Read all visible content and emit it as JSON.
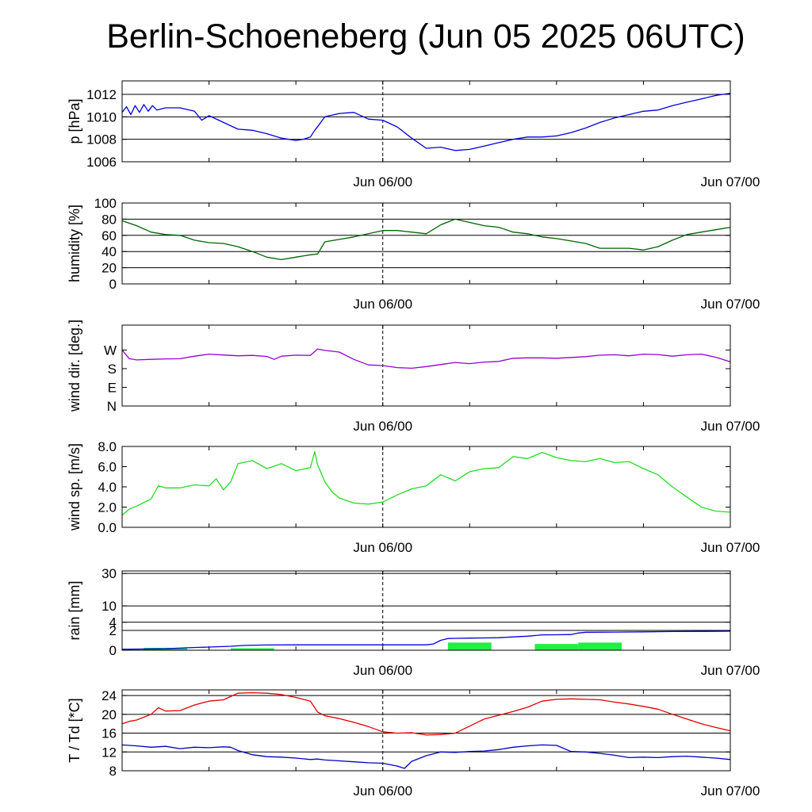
{
  "title": "Berlin-Schoeneberg (Jun 05 2025 06UTC)",
  "colors": {
    "pressure": "#0000e0",
    "humidity": "#006400",
    "wind_dir": "#9400d3",
    "wind_speed": "#22dd22",
    "rain_total": "#0000e0",
    "rain_bars": "#22ee44",
    "temperature": "#e00000",
    "dewpoint": "#0000c0"
  },
  "chart_data": [
    {
      "id": "pressure",
      "type": "line",
      "ylabel": "p [hPa]",
      "xlim": [
        0,
        42
      ],
      "ylim": [
        1006,
        1013.2
      ],
      "yticks": [
        "1006",
        "1008",
        "1010",
        "1012"
      ],
      "ytick_values": [
        1006,
        1008,
        1010,
        1012
      ],
      "grid_y": [
        1008,
        1010,
        1012
      ],
      "xticks": [
        "Jun 06/00",
        "Jun 07/00"
      ],
      "xtick_hours": [
        18,
        42
      ],
      "marker_hour": 18,
      "series": [
        {
          "color_key": "pressure",
          "x": [
            0,
            0.3,
            0.6,
            0.9,
            1.2,
            1.5,
            1.8,
            2.1,
            2.4,
            3,
            4,
            5,
            5.5,
            6,
            7,
            8,
            9,
            10,
            11,
            12,
            12.5,
            13,
            13.3,
            13.6,
            14,
            15,
            16,
            17,
            18,
            19,
            20,
            21,
            22,
            23,
            24,
            25,
            26,
            27,
            28,
            29,
            30,
            31,
            32,
            33,
            34,
            35,
            36,
            37,
            38,
            39,
            40,
            41,
            42
          ],
          "y": [
            1010.4,
            1010.9,
            1010.2,
            1011,
            1010.4,
            1011.1,
            1010.5,
            1011,
            1010.6,
            1010.8,
            1010.8,
            1010.5,
            1009.7,
            1010.1,
            1009.5,
            1008.9,
            1008.8,
            1008.5,
            1008.1,
            1007.9,
            1008,
            1008.2,
            1008.8,
            1009.3,
            1010,
            1010.3,
            1010.4,
            1009.8,
            1009.7,
            1009.1,
            1008.1,
            1007.2,
            1007.3,
            1007,
            1007.1,
            1007.4,
            1007.7,
            1008,
            1008.2,
            1008.2,
            1008.3,
            1008.6,
            1009,
            1009.5,
            1009.9,
            1010.2,
            1010.5,
            1010.6,
            1011,
            1011.3,
            1011.6,
            1011.9,
            1012.1
          ]
        }
      ]
    },
    {
      "id": "humidity",
      "type": "line",
      "ylabel": "humidity [%]",
      "xlim": [
        0,
        42
      ],
      "ylim": [
        0,
        100
      ],
      "yticks": [
        "0",
        "20",
        "40",
        "60",
        "80",
        "100"
      ],
      "ytick_values": [
        0,
        20,
        40,
        60,
        80,
        100
      ],
      "grid_y": [
        20,
        40,
        60,
        80
      ],
      "xticks": [
        "Jun 06/00",
        "Jun 07/00"
      ],
      "xtick_hours": [
        18,
        42
      ],
      "marker_hour": 18,
      "series": [
        {
          "color_key": "humidity",
          "x": [
            0,
            1,
            2,
            3,
            4,
            5,
            6,
            7,
            8,
            9,
            10,
            11,
            12,
            13,
            13.5,
            14,
            15,
            16,
            17,
            18,
            19,
            20,
            21,
            22,
            23,
            24,
            25,
            26,
            27,
            28,
            29,
            30,
            31,
            32,
            33,
            34,
            35,
            36,
            37,
            38,
            39,
            40,
            41,
            42
          ],
          "y": [
            78,
            72,
            64,
            61,
            60,
            54,
            51,
            50,
            46,
            40,
            33,
            30,
            33,
            36,
            37,
            52,
            55,
            58,
            62,
            66,
            66,
            64,
            62,
            73,
            80,
            76,
            72,
            70,
            64,
            62,
            58,
            56,
            53,
            50,
            44,
            44,
            44,
            42,
            46,
            54,
            61,
            64,
            67,
            70
          ]
        }
      ]
    },
    {
      "id": "wind_dir",
      "type": "line",
      "ylabel": "wind dir. [deg.]",
      "xlim": [
        0,
        42
      ],
      "ylim": [
        0,
        390
      ],
      "yticks": [
        "N",
        "E",
        "S",
        "W"
      ],
      "ytick_values": [
        0,
        90,
        180,
        270
      ],
      "grid_y": [],
      "xticks": [
        "Jun 06/00",
        "Jun 07/00"
      ],
      "xtick_hours": [
        18,
        42
      ],
      "marker_hour": 18,
      "series": [
        {
          "color_key": "wind_dir",
          "x": [
            0,
            0.5,
            1,
            2,
            3,
            4,
            5,
            6,
            7,
            8,
            9,
            10,
            10.5,
            11,
            12,
            13,
            13.5,
            14,
            15,
            16,
            17,
            18,
            19,
            20,
            21,
            22,
            23,
            24,
            25,
            26,
            27,
            28,
            29,
            30,
            31,
            32,
            33,
            34,
            35,
            36,
            37,
            38,
            39,
            40,
            41,
            42
          ],
          "y": [
            270,
            228,
            222,
            225,
            227,
            228,
            240,
            250,
            246,
            242,
            244,
            239,
            225,
            240,
            245,
            244,
            275,
            268,
            260,
            225,
            198,
            195,
            185,
            182,
            190,
            200,
            210,
            204,
            212,
            215,
            230,
            232,
            232,
            230,
            234,
            238,
            245,
            247,
            242,
            250,
            248,
            240,
            247,
            250,
            235,
            213
          ]
        }
      ]
    },
    {
      "id": "wind_speed",
      "type": "line",
      "ylabel": "wind sp. [m/s]",
      "xlim": [
        0,
        42
      ],
      "ylim": [
        0,
        8
      ],
      "yticks": [
        "0.0",
        "2.0",
        "4.0",
        "6.0",
        "8.0"
      ],
      "ytick_values": [
        0,
        2,
        4,
        6,
        8
      ],
      "grid_y": [],
      "xticks": [
        "Jun 06/00",
        "Jun 07/00"
      ],
      "xtick_hours": [
        18,
        42
      ],
      "marker_hour": 18,
      "series": [
        {
          "color_key": "wind_speed",
          "x": [
            0,
            0.5,
            1,
            2,
            2.5,
            3,
            4,
            5,
            6,
            6.5,
            7,
            7.5,
            8,
            9,
            10,
            11,
            12,
            13,
            13.3,
            13.5,
            14,
            14.5,
            15,
            16,
            17,
            18,
            19,
            20,
            21,
            22,
            23,
            24,
            25,
            26,
            27,
            28,
            29,
            30,
            31,
            32,
            33,
            34,
            35,
            36,
            37,
            38,
            39,
            40,
            41,
            42
          ],
          "y": [
            1.2,
            1.8,
            2.1,
            2.8,
            4.1,
            3.9,
            3.9,
            4.2,
            4.1,
            4.8,
            3.7,
            4.5,
            6.3,
            6.6,
            5.8,
            6.3,
            5.6,
            5.9,
            7.5,
            6.2,
            4.5,
            3.5,
            2.9,
            2.4,
            2.3,
            2.5,
            3.2,
            3.8,
            4.1,
            5.2,
            4.6,
            5.5,
            5.8,
            5.9,
            7,
            6.8,
            7.4,
            6.9,
            6.6,
            6.5,
            6.8,
            6.4,
            6.5,
            5.8,
            5.2,
            4,
            3,
            2,
            1.6,
            1.5
          ]
        }
      ]
    },
    {
      "id": "rain",
      "type": "bar+line",
      "ylabel": "rain [mm]",
      "xlim": [
        0,
        42
      ],
      "scale": "sqrt",
      "ylim": [
        0,
        32
      ],
      "yticks": [
        "0",
        "2",
        "4",
        "10",
        "30"
      ],
      "ytick_values": [
        0,
        2,
        4,
        10,
        30
      ],
      "grid_y": [
        2,
        4,
        10,
        30
      ],
      "xticks": [
        "Jun 06/00",
        "Jun 07/00"
      ],
      "xtick_hours": [
        18,
        42
      ],
      "marker_hour": 18,
      "bars": [
        {
          "start": 1.5,
          "end": 4.5,
          "value": 0.03
        },
        {
          "start": 7.5,
          "end": 10.5,
          "value": 0.02
        },
        {
          "start": 22.5,
          "end": 25.5,
          "value": 0.3
        },
        {
          "start": 28.5,
          "end": 31.5,
          "value": 0.2
        },
        {
          "start": 31.5,
          "end": 34.5,
          "value": 0.3
        }
      ],
      "series": [
        {
          "color_key": "rain_total",
          "x": [
            0,
            3,
            4.5,
            6,
            7.5,
            8.5,
            10,
            12,
            14,
            16,
            18,
            20,
            21,
            21.5,
            22,
            22.5,
            23,
            24,
            25,
            26,
            27,
            28,
            28.5,
            29,
            30,
            31,
            31.5,
            32,
            34,
            36,
            38,
            40,
            42
          ],
          "y": [
            0.005,
            0.01,
            0.03,
            0.05,
            0.08,
            0.12,
            0.14,
            0.15,
            0.15,
            0.15,
            0.15,
            0.15,
            0.15,
            0.2,
            0.5,
            0.7,
            0.72,
            0.75,
            0.77,
            0.8,
            0.9,
            1.0,
            1.1,
            1.2,
            1.22,
            1.25,
            1.5,
            1.65,
            1.68,
            1.72,
            1.78,
            1.82,
            1.85
          ]
        }
      ]
    },
    {
      "id": "temperature",
      "type": "line",
      "ylabel": "T / Td [*C]",
      "xlim": [
        0,
        42
      ],
      "ylim": [
        8,
        25.2
      ],
      "yticks": [
        "8",
        "12",
        "16",
        "20",
        "24"
      ],
      "ytick_values": [
        8,
        12,
        16,
        20,
        24
      ],
      "grid_y": [
        12,
        16,
        20,
        24
      ],
      "xticks": [
        "Jun 06/00",
        "Jun 07/00"
      ],
      "xtick_hours": [
        18,
        42
      ],
      "marker_hour": 18,
      "series": [
        {
          "color_key": "temperature",
          "x": [
            0,
            0.5,
            1,
            2,
            2.5,
            3,
            4,
            5,
            6,
            7,
            8,
            9,
            10,
            11,
            12,
            13,
            13.5,
            14,
            15,
            16,
            17,
            18,
            19,
            20,
            21,
            22,
            23,
            24,
            25,
            26,
            27,
            28,
            29,
            30,
            31,
            32,
            33,
            34,
            35,
            36,
            37,
            38,
            39,
            40,
            41,
            42
          ],
          "y": [
            18,
            18.5,
            18.8,
            20,
            21.4,
            20.7,
            20.8,
            22,
            22.8,
            23.1,
            24.5,
            24.6,
            24.5,
            24.2,
            23.6,
            22.8,
            20.5,
            19.7,
            19.1,
            18.3,
            17.4,
            16.3,
            16,
            16.1,
            15.6,
            15.7,
            16,
            17.5,
            19,
            19.8,
            20.6,
            21.5,
            22.8,
            23.2,
            23.3,
            23.2,
            23.1,
            22.6,
            22.2,
            21.7,
            21.1,
            20,
            19,
            18,
            17.2,
            16.5
          ]
        },
        {
          "color_key": "dewpoint",
          "x": [
            0,
            1,
            2,
            3,
            4,
            5,
            6,
            7,
            7.5,
            8,
            9,
            10,
            11,
            12,
            13,
            13.5,
            14,
            15,
            16,
            17,
            18,
            19,
            19.5,
            20,
            21,
            22,
            23,
            24,
            25,
            26,
            27,
            28,
            28.5,
            29,
            30,
            31,
            32,
            33,
            34,
            35,
            36,
            37,
            38,
            39,
            40,
            41,
            42
          ],
          "y": [
            13.5,
            13.3,
            13,
            13.2,
            12.7,
            13,
            12.9,
            13.1,
            13,
            12.3,
            11.4,
            11,
            10.9,
            10.7,
            10.4,
            10.5,
            10.3,
            10.1,
            9.9,
            9.7,
            9.6,
            9,
            8.5,
            10,
            11.2,
            12,
            11.9,
            12.1,
            12.2,
            12.5,
            13,
            13.3,
            13.4,
            13.5,
            13.4,
            12.1,
            12,
            11.7,
            11.3,
            10.8,
            10.9,
            10.8,
            11,
            11.1,
            10.9,
            10.7,
            10.4
          ]
        }
      ]
    }
  ]
}
